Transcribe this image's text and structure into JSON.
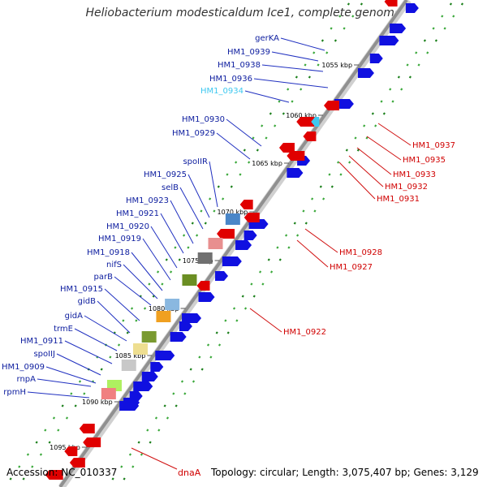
{
  "title": "Heliobacterium modesticaldum Ice1, complete genome",
  "footer": {
    "accession": "Accession: NC_010337",
    "topology": "Topology: circular; Length: 3,075,407 bp; Genes: 3,129"
  },
  "colors": {
    "forward": "#1010e0",
    "reverse": "#e00000",
    "highlight": "#3ec8f0",
    "backbone": "#9a9a9a"
  },
  "ticks": [
    "1055 kbp",
    "1060 kbp",
    "1065 kbp",
    "1070 kbp",
    "1075 kbp",
    "1080 kbp",
    "1085 kbp",
    "1090 kbp",
    "1095 kbp"
  ],
  "left_labels": [
    "gerKA",
    "HM1_0939",
    "HM1_0938",
    "HM1_0936",
    "HM1_0934",
    "HM1_0930",
    "HM1_0929",
    "spoIIR",
    "HM1_0925",
    "selB",
    "HM1_0923",
    "HM1_0921",
    "HM1_0920",
    "HM1_0919",
    "HM1_0918",
    "nifS",
    "parB",
    "HM1_0915",
    "gidB",
    "gidA",
    "trmE",
    "HM1_0911",
    "spoIIJ",
    "HM1_0909",
    "rnpA",
    "rpmH"
  ],
  "right_labels": [
    "HM1_0937",
    "HM1_0935",
    "HM1_0933",
    "HM1_0932",
    "HM1_0931",
    "HM1_0928",
    "HM1_0927",
    "HM1_0922"
  ],
  "bottom_label": "dnaA"
}
